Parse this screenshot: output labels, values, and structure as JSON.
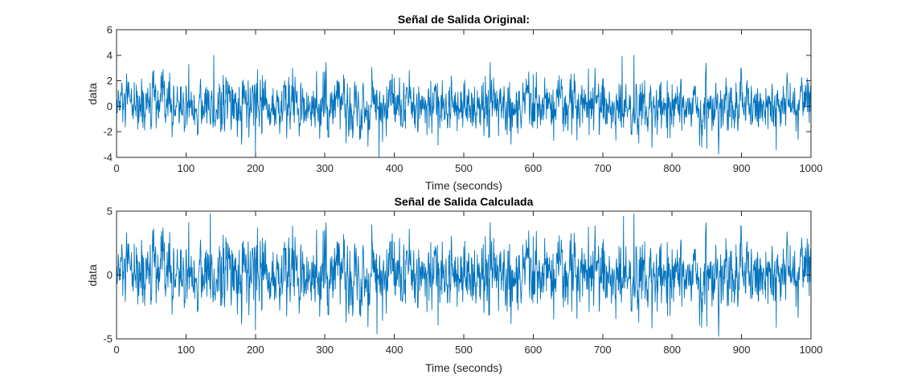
{
  "window": {
    "background": "#ffffff"
  },
  "chart_data": [
    {
      "type": "line",
      "title": "Señal de Salida Original:",
      "xlabel": "Time (seconds)",
      "ylabel": "data",
      "xlim": [
        0,
        1000
      ],
      "ylim": [
        -4,
        6
      ],
      "xticks": [
        0,
        100,
        200,
        300,
        400,
        500,
        600,
        700,
        800,
        900,
        1000
      ],
      "yticks": [
        -4,
        -2,
        0,
        2,
        4,
        6
      ],
      "xtick_labels": [
        "0",
        "100",
        "200",
        "300",
        "400",
        "500",
        "600",
        "700",
        "800",
        "900",
        "1000"
      ],
      "ytick_labels": [
        "-4",
        "-2",
        "0",
        "2",
        "4",
        "6"
      ],
      "grid": false,
      "series": [
        {
          "color": "#0072bd",
          "x_step": 0.5,
          "sample_count": 2001,
          "x": [
            0,
            50,
            100,
            140,
            150,
            200,
            210,
            250,
            300,
            350,
            378,
            400,
            450,
            500,
            550,
            600,
            650,
            700,
            728,
            745,
            750,
            800,
            850,
            900,
            950,
            1000
          ],
          "y": [
            0.3,
            -1.5,
            1.6,
            4.0,
            -2.0,
            -3.6,
            2.4,
            -1.8,
            1.9,
            -2.6,
            -4.0,
            2.2,
            -1.7,
            1.8,
            -2.3,
            2.5,
            -1.9,
            2.1,
            3.9,
            4.0,
            -2.2,
            1.7,
            -3.3,
            2.3,
            -3.4,
            0.5
          ]
        }
      ]
    },
    {
      "type": "line",
      "title": "Señal de Salida Calculada",
      "xlabel": "Time (seconds)",
      "ylabel": "data",
      "xlim": [
        0,
        1000
      ],
      "ylim": [
        -5,
        5
      ],
      "xticks": [
        0,
        100,
        200,
        300,
        400,
        500,
        600,
        700,
        800,
        900,
        1000
      ],
      "yticks": [
        -5,
        0,
        5
      ],
      "xtick_labels": [
        "0",
        "100",
        "200",
        "300",
        "400",
        "500",
        "600",
        "700",
        "800",
        "900",
        "1000"
      ],
      "ytick_labels": [
        "-5",
        "0",
        "5"
      ],
      "grid": false,
      "series": [
        {
          "color": "#0072bd",
          "x_step": 0.5,
          "sample_count": 2001,
          "x": [
            0,
            50,
            100,
            135,
            150,
            200,
            210,
            250,
            300,
            350,
            375,
            400,
            450,
            500,
            550,
            600,
            650,
            700,
            730,
            745,
            750,
            800,
            850,
            900,
            950,
            1000
          ],
          "y": [
            0.4,
            -1.8,
            2.0,
            4.8,
            -2.4,
            -4.3,
            2.9,
            -2.1,
            2.3,
            -3.1,
            -4.6,
            2.6,
            -2.0,
            2.2,
            -2.8,
            3.0,
            -2.3,
            2.5,
            4.6,
            4.8,
            -2.7,
            2.0,
            -4.0,
            2.8,
            -4.1,
            0.6
          ]
        }
      ]
    }
  ]
}
